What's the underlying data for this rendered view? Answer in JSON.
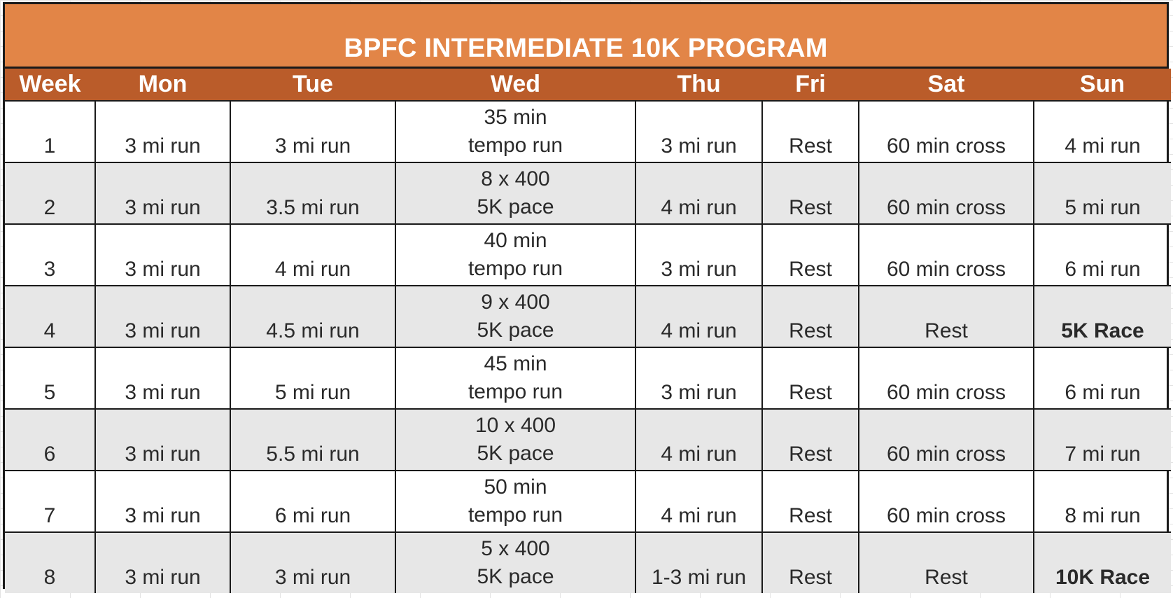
{
  "title": "BPFC INTERMEDIATE 10K PROGRAM",
  "colors": {
    "title_band": "#E28547",
    "header_band": "#BA5C2A",
    "alt_row": "#E7E7E7",
    "border": "#1a1a1a"
  },
  "headers": [
    "Week",
    "Mon",
    "Tue",
    "Wed",
    "Thu",
    "Fri",
    "Sat",
    "Sun"
  ],
  "rows": [
    {
      "week": "1",
      "mon": "3 mi run",
      "tue": "3 mi run",
      "wed_line1": "35 min",
      "wed_line2": "tempo run",
      "thu": "3 mi run",
      "fri": "Rest",
      "sat": "60 min cross",
      "sun": "4 mi run"
    },
    {
      "week": "2",
      "mon": "3 mi run",
      "tue": "3.5 mi run",
      "wed_line1": "8 x 400",
      "wed_line2": "5K pace",
      "thu": "4 mi run",
      "fri": "Rest",
      "sat": "60 min cross",
      "sun": "5 mi run"
    },
    {
      "week": "3",
      "mon": "3 mi run",
      "tue": "4 mi run",
      "wed_line1": "40 min",
      "wed_line2": "tempo run",
      "thu": "3 mi run",
      "fri": "Rest",
      "sat": "60 min cross",
      "sun": "6 mi run"
    },
    {
      "week": "4",
      "mon": "3 mi run",
      "tue": "4.5 mi run",
      "wed_line1": "9 x 400",
      "wed_line2": "5K pace",
      "thu": "4 mi run",
      "fri": "Rest",
      "sat": "Rest",
      "sun": "5K Race"
    },
    {
      "week": "5",
      "mon": "3 mi run",
      "tue": "5 mi run",
      "wed_line1": "45 min",
      "wed_line2": "tempo run",
      "thu": "3 mi run",
      "fri": "Rest",
      "sat": "60 min cross",
      "sun": "6 mi run"
    },
    {
      "week": "6",
      "mon": "3 mi run",
      "tue": "5.5 mi run",
      "wed_line1": "10 x 400",
      "wed_line2": "5K pace",
      "thu": "4 mi run",
      "fri": "Rest",
      "sat": "60 min cross",
      "sun": "7 mi run"
    },
    {
      "week": "7",
      "mon": "3 mi run",
      "tue": "6 mi run",
      "wed_line1": "50 min",
      "wed_line2": "tempo run",
      "thu": "4 mi run",
      "fri": "Rest",
      "sat": "60 min cross",
      "sun": "8 mi run"
    },
    {
      "week": "8",
      "mon": "3 mi run",
      "tue": "3 mi run",
      "wed_line1": "5 x 400",
      "wed_line2": "5K pace",
      "thu": "1-3 mi run",
      "fri": "Rest",
      "sat": "Rest",
      "sun": "10K Race"
    }
  ]
}
